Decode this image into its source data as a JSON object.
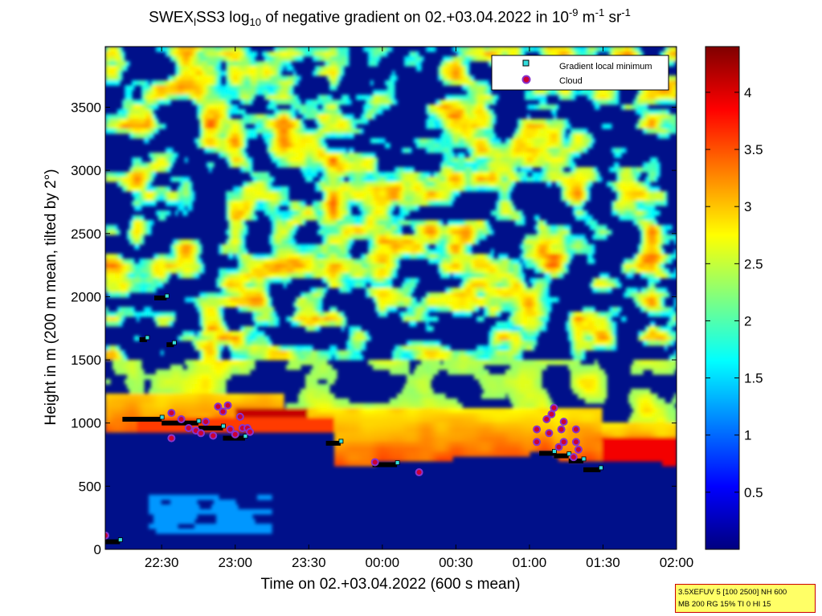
{
  "figure": {
    "title_main": "SWEX",
    "title_sub1": "l",
    "title_mid": "SS3 log",
    "title_sub2": "10",
    "title_rest": " of negative gradient on 02.+03.04.2022 in 10",
    "title_sup1": "-9",
    "title_unit1": " m",
    "title_sup2": "-1",
    "title_unit2": " sr",
    "title_sup3": "-1",
    "xlabel": "Time on 02.+03.04.2022 (600 s mean)",
    "ylabel": "Height in m (200 m mean, tilted by 2°)",
    "info_line1": "3.5XEFUV 5 [100 2500] NH 600",
    "info_line2": "MB 200 RG 15% TI 0 HI 15"
  },
  "colors": {
    "background_low": "#00108a",
    "gradient_marker": "#33dddd",
    "cloud_marker": "#cc0033",
    "cloud_outline": "#8833cc",
    "info_bg": "#ffff66",
    "info_border": "#cc0000"
  },
  "chart_data": {
    "type": "heatmap",
    "colormap": "jet",
    "x_axis": {
      "unit": "time of day",
      "range": [
        "22:07",
        "02:00"
      ],
      "ticks": [
        "22:30",
        "23:00",
        "23:30",
        "00:00",
        "00:30",
        "01:00",
        "01:30",
        "02:00"
      ]
    },
    "y_axis": {
      "range": [
        0,
        3980
      ],
      "ticks": [
        0,
        500,
        1000,
        1500,
        2000,
        2500,
        3000,
        3500
      ]
    },
    "colorbar": {
      "range": [
        0,
        4.4
      ],
      "ticks": [
        0.5,
        1,
        1.5,
        2,
        2.5,
        3,
        3.5,
        4
      ]
    },
    "legend": {
      "position": "top-right",
      "entries": [
        {
          "label": "Gradient local minimum",
          "marker": "square"
        },
        {
          "label": "Cloud",
          "marker": "circle"
        }
      ]
    },
    "gradient_minima_clusters": [
      {
        "t0": "22:07",
        "t1": "22:13",
        "h": 60
      },
      {
        "t0": "22:14",
        "t1": "22:30",
        "h": 1030
      },
      {
        "t0": "22:30",
        "t1": "22:45",
        "h": 1000
      },
      {
        "t0": "22:45",
        "t1": "22:55",
        "h": 960
      },
      {
        "t0": "22:55",
        "t1": "23:04",
        "h": 880
      },
      {
        "t0": "23:37",
        "t1": "23:43",
        "h": 840
      },
      {
        "t0": "23:56",
        "t1": "00:06",
        "h": 670
      },
      {
        "t0": "01:04",
        "t1": "01:10",
        "h": 760
      },
      {
        "t0": "01:10",
        "t1": "01:16",
        "h": 740
      },
      {
        "t0": "01:16",
        "t1": "01:22",
        "h": 700
      },
      {
        "t0": "01:22",
        "t1": "01:29",
        "h": 630
      },
      {
        "t0": "22:21",
        "t1": "22:24",
        "h": 1660
      },
      {
        "t0": "22:27",
        "t1": "22:32",
        "h": 1990
      },
      {
        "t0": "22:32",
        "t1": "22:35",
        "h": 1620
      }
    ],
    "cloud_points": [
      {
        "t": "22:07",
        "h": 110
      },
      {
        "t": "22:34",
        "h": 880
      },
      {
        "t": "22:34",
        "h": 1080
      },
      {
        "t": "22:38",
        "h": 1030
      },
      {
        "t": "22:41",
        "h": 960
      },
      {
        "t": "22:44",
        "h": 940
      },
      {
        "t": "22:46",
        "h": 920
      },
      {
        "t": "22:48",
        "h": 1010
      },
      {
        "t": "22:51",
        "h": 900
      },
      {
        "t": "22:53",
        "h": 1130
      },
      {
        "t": "22:55",
        "h": 1090
      },
      {
        "t": "22:57",
        "h": 1140
      },
      {
        "t": "22:58",
        "h": 950
      },
      {
        "t": "23:00",
        "h": 910
      },
      {
        "t": "23:02",
        "h": 1050
      },
      {
        "t": "23:03",
        "h": 960
      },
      {
        "t": "23:05",
        "h": 960
      },
      {
        "t": "23:06",
        "h": 930
      },
      {
        "t": "23:57",
        "h": 690
      },
      {
        "t": "00:15",
        "h": 610
      },
      {
        "t": "01:03",
        "h": 950
      },
      {
        "t": "01:03",
        "h": 850
      },
      {
        "t": "01:07",
        "h": 1030
      },
      {
        "t": "01:08",
        "h": 920
      },
      {
        "t": "01:09",
        "h": 1070
      },
      {
        "t": "01:10",
        "h": 1120
      },
      {
        "t": "01:12",
        "h": 810
      },
      {
        "t": "01:13",
        "h": 950
      },
      {
        "t": "01:14",
        "h": 850
      },
      {
        "t": "01:14",
        "h": 1010
      },
      {
        "t": "01:18",
        "h": 730
      },
      {
        "t": "01:19",
        "h": 950
      },
      {
        "t": "01:19",
        "h": 850
      },
      {
        "t": "01:20",
        "h": 790
      }
    ]
  }
}
